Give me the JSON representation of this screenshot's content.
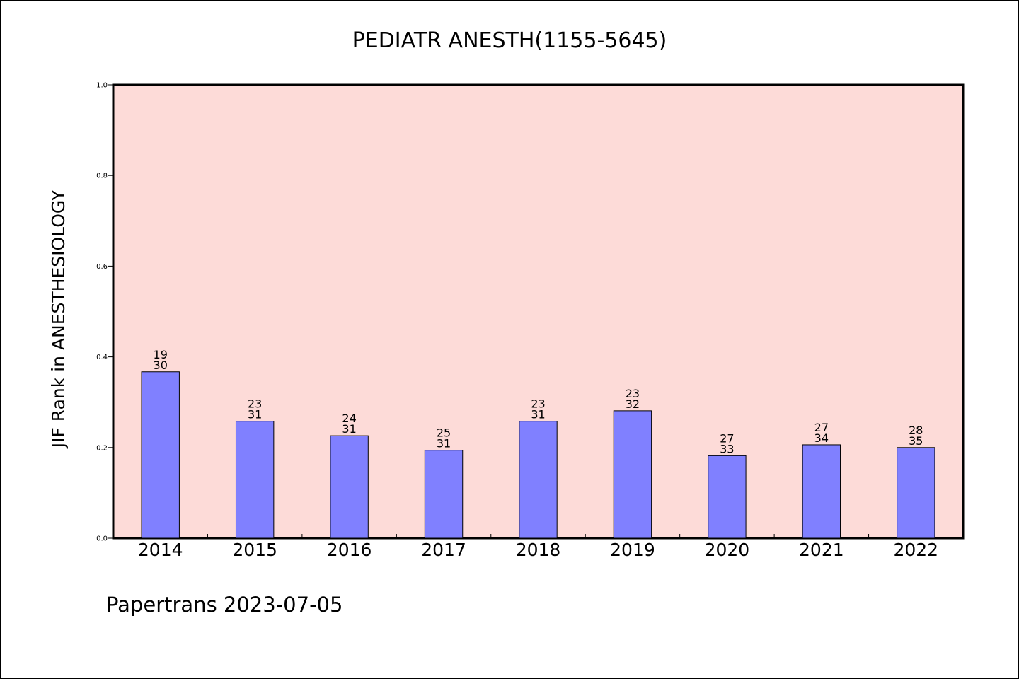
{
  "chart_data": {
    "type": "bar",
    "title": "PEDIATR ANESTH(1155-5645)",
    "ylabel": "JIF Rank in ANESTHESIOLOGY",
    "xlabel": "",
    "footer": "Papertrans 2023-07-05",
    "ylim": [
      0,
      1.0
    ],
    "yticks": [
      "0.0",
      "0.2",
      "0.4",
      "0.6",
      "0.8",
      "1.0"
    ],
    "ytick_values": [
      0,
      0.2,
      0.4,
      0.6,
      0.8,
      1.0
    ],
    "categories": [
      "2014",
      "2015",
      "2016",
      "2017",
      "2018",
      "2019",
      "2020",
      "2021",
      "2022"
    ],
    "values": [
      0.367,
      0.258,
      0.226,
      0.194,
      0.258,
      0.281,
      0.182,
      0.206,
      0.2
    ],
    "rank": [
      "19",
      "23",
      "24",
      "25",
      "23",
      "23",
      "27",
      "27",
      "28"
    ],
    "total": [
      "30",
      "31",
      "31",
      "31",
      "31",
      "32",
      "33",
      "34",
      "35"
    ],
    "grid": false,
    "colors": {
      "bar": "#8080ff",
      "plot_background": "#fddbd8",
      "axis": "#000000"
    }
  }
}
